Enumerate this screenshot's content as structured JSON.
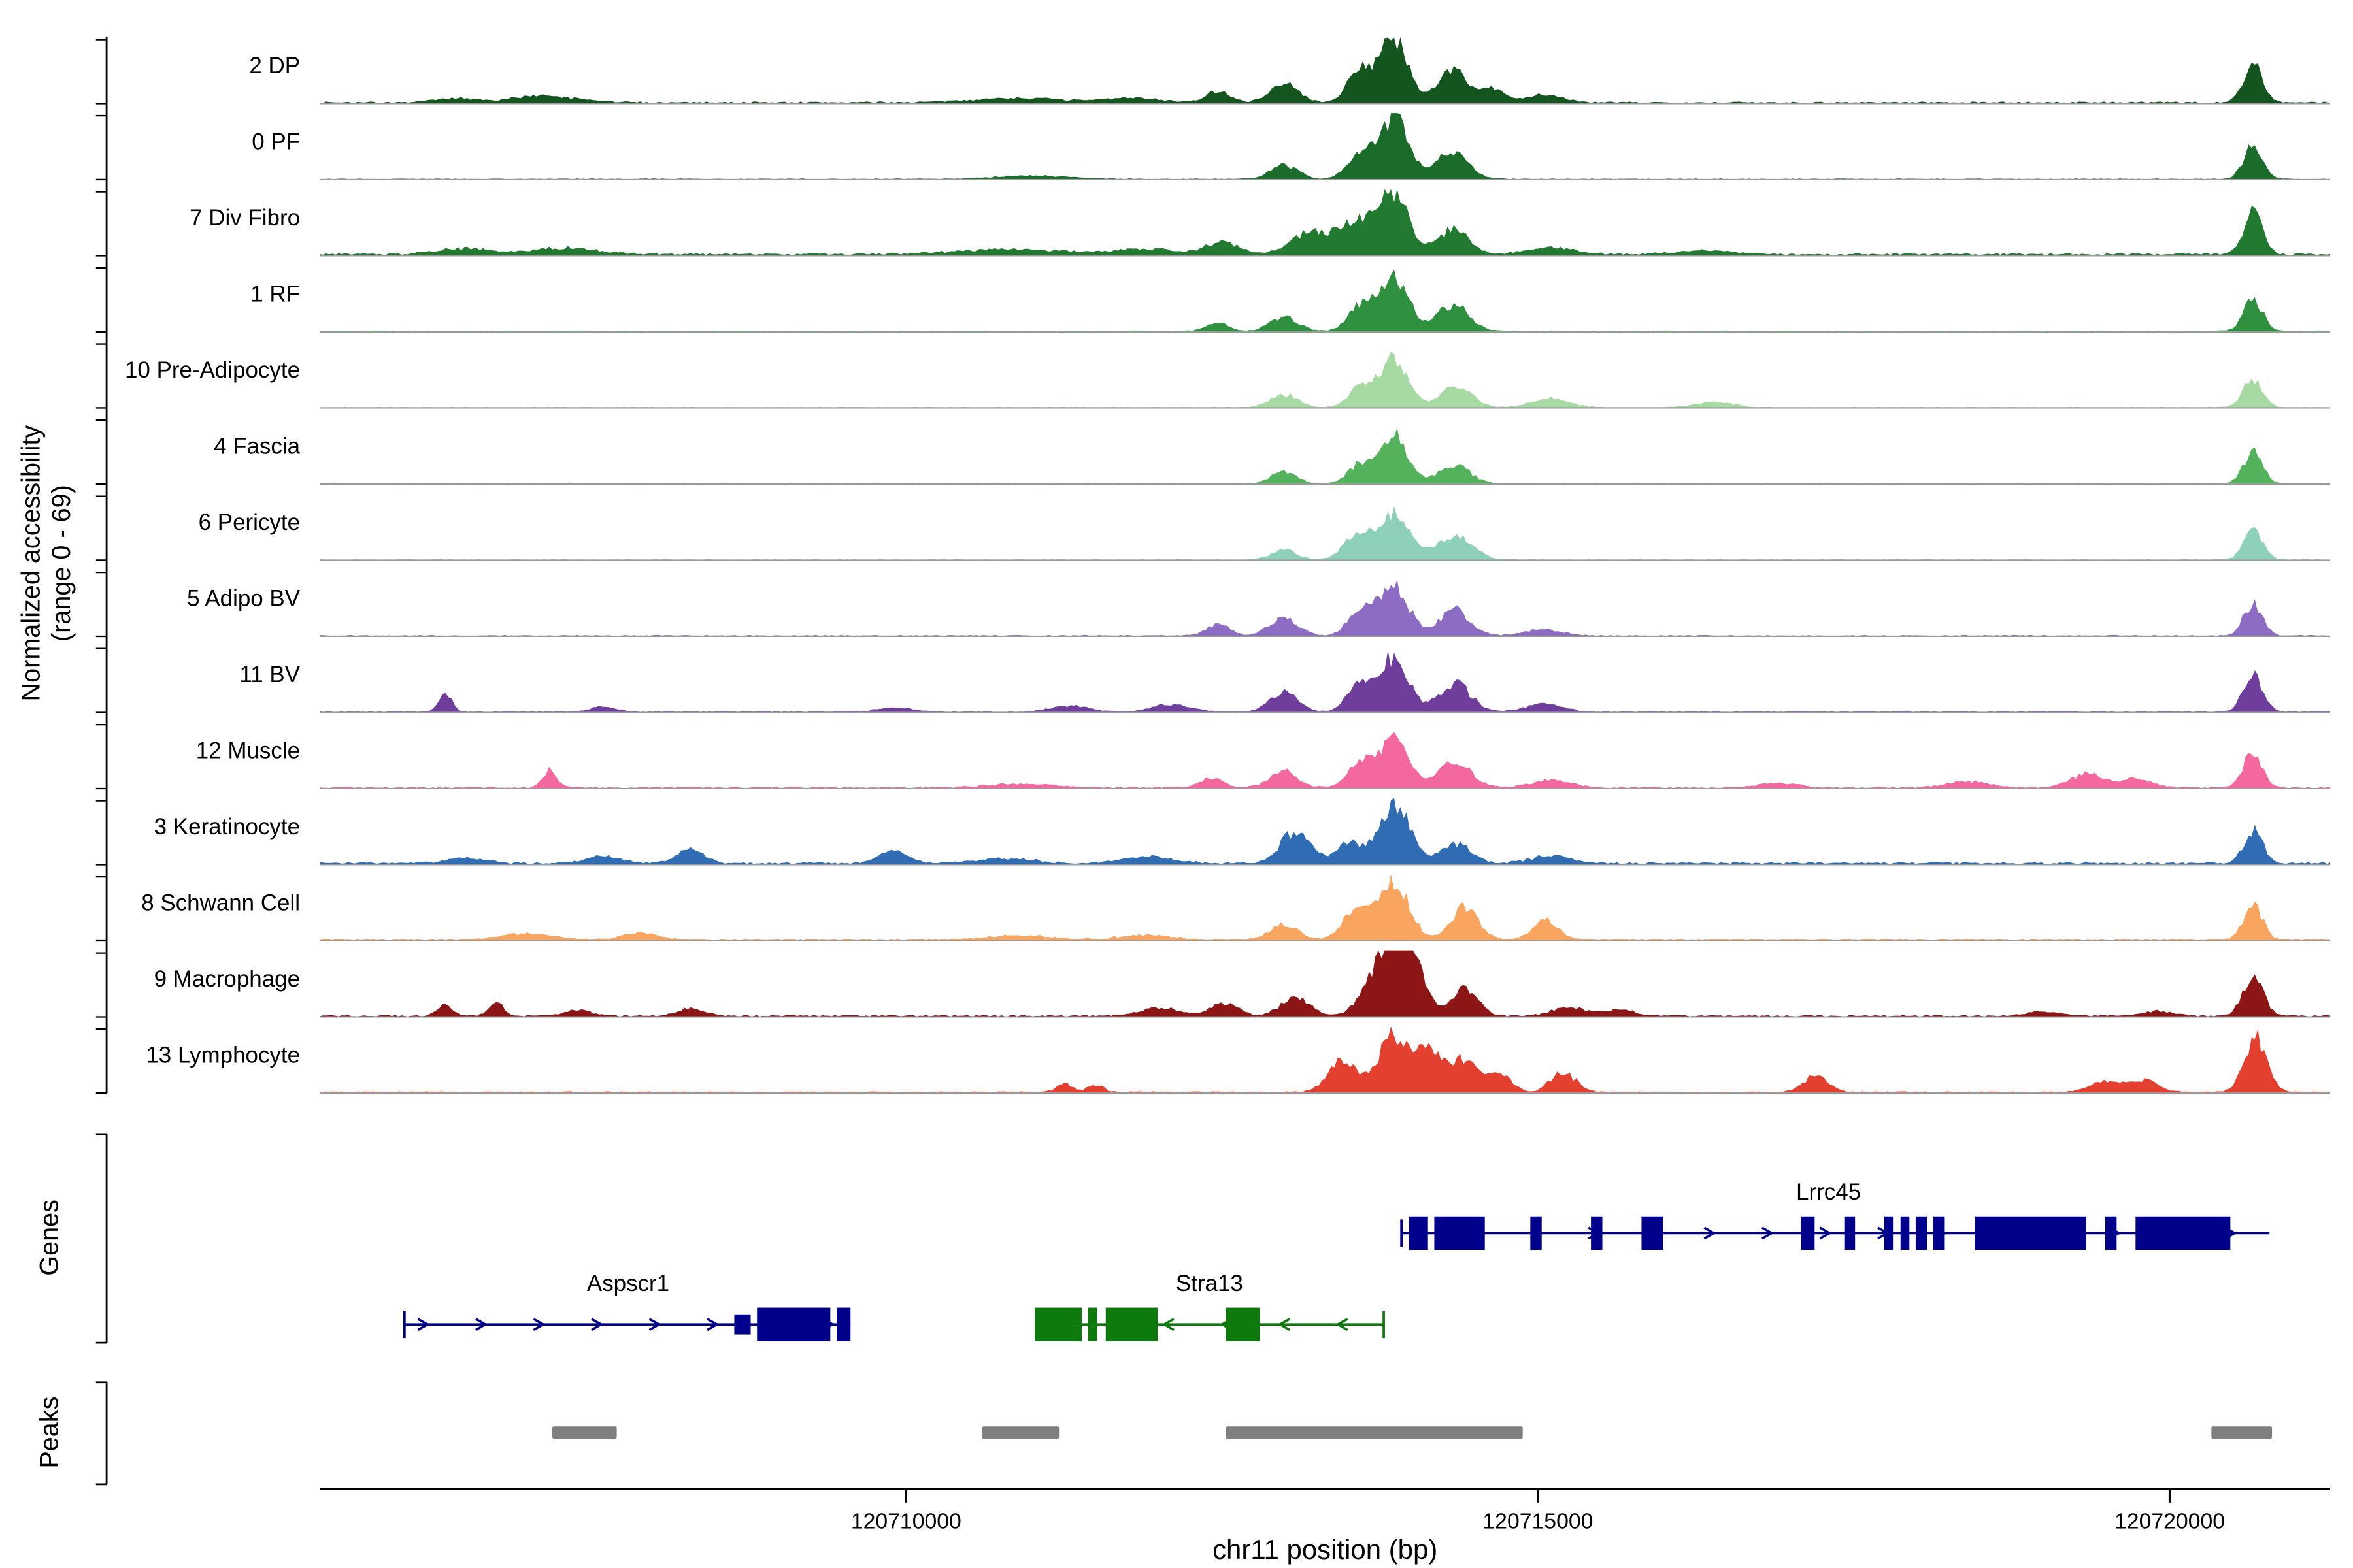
{
  "figure": {
    "y_axis_label_line1": "Normalized accessibility",
    "y_axis_label_line2": "(range 0 - 69)",
    "genes_section_label": "Genes",
    "peaks_section_label": "Peaks",
    "x_axis_label": "chr11 position (bp)"
  },
  "chart_data": {
    "type": "area",
    "title": "",
    "x_range_bp": [
      120705360,
      120721270
    ],
    "x_ticks": [
      120710000,
      120715000,
      120720000
    ],
    "grid": false,
    "tracks": [
      {
        "label": "2 DP",
        "color": "#14551f",
        "noise": 0.022,
        "peaks": [
          [
            120713860,
            110,
            1.0
          ],
          [
            120713590,
            95,
            0.5
          ],
          [
            120714330,
            120,
            0.5
          ],
          [
            120714650,
            90,
            0.2
          ],
          [
            120712990,
            110,
            0.3
          ],
          [
            120712470,
            90,
            0.18
          ],
          [
            120707120,
            260,
            0.1
          ],
          [
            120706420,
            150,
            0.06
          ],
          [
            120710900,
            350,
            0.07
          ],
          [
            120711800,
            200,
            0.07
          ],
          [
            120715050,
            140,
            0.12
          ],
          [
            120720660,
            75,
            0.6
          ]
        ]
      },
      {
        "label": "0 PF",
        "color": "#1b6b2a",
        "noise": 0.013,
        "peaks": [
          [
            120713860,
            115,
            0.95
          ],
          [
            120713590,
            95,
            0.4
          ],
          [
            120714330,
            120,
            0.45
          ],
          [
            120712990,
            110,
            0.22
          ],
          [
            120711000,
            300,
            0.05
          ],
          [
            120720660,
            75,
            0.5
          ]
        ]
      },
      {
        "label": "7 Div Fibro",
        "color": "#227a31",
        "noise": 0.03,
        "peaks": [
          [
            120713860,
            115,
            0.95
          ],
          [
            120713560,
            130,
            0.5
          ],
          [
            120713200,
            150,
            0.35
          ],
          [
            120714330,
            120,
            0.4
          ],
          [
            120712500,
            120,
            0.2
          ],
          [
            120706500,
            200,
            0.09
          ],
          [
            120707300,
            250,
            0.1
          ],
          [
            120710800,
            400,
            0.08
          ],
          [
            120711900,
            250,
            0.08
          ],
          [
            120715100,
            180,
            0.1
          ],
          [
            120716300,
            200,
            0.06
          ],
          [
            120720660,
            75,
            0.65
          ]
        ]
      },
      {
        "label": "1 RF",
        "color": "#2f9140",
        "noise": 0.015,
        "peaks": [
          [
            120713860,
            115,
            0.85
          ],
          [
            120713590,
            95,
            0.38
          ],
          [
            120714330,
            120,
            0.42
          ],
          [
            120712990,
            110,
            0.22
          ],
          [
            120712470,
            90,
            0.12
          ],
          [
            120720660,
            75,
            0.5
          ]
        ]
      },
      {
        "label": "10 Pre-Adipocyte",
        "color": "#a7d9a2",
        "noise": 0.012,
        "peaks": [
          [
            120713860,
            110,
            0.8
          ],
          [
            120713590,
            90,
            0.3
          ],
          [
            120714350,
            120,
            0.35
          ],
          [
            120712990,
            110,
            0.2
          ],
          [
            120715100,
            140,
            0.15
          ],
          [
            120716400,
            150,
            0.08
          ],
          [
            120720660,
            75,
            0.45
          ]
        ]
      },
      {
        "label": "4 Fascia",
        "color": "#55b25c",
        "noise": 0.012,
        "peaks": [
          [
            120713860,
            110,
            0.75
          ],
          [
            120713590,
            90,
            0.3
          ],
          [
            120714340,
            120,
            0.3
          ],
          [
            120712990,
            100,
            0.18
          ],
          [
            120720660,
            75,
            0.5
          ]
        ]
      },
      {
        "label": "6 Pericyte",
        "color": "#8ed0ba",
        "noise": 0.012,
        "peaks": [
          [
            120713860,
            130,
            0.75
          ],
          [
            120713560,
            100,
            0.35
          ],
          [
            120714350,
            130,
            0.38
          ],
          [
            120712990,
            100,
            0.15
          ],
          [
            120720660,
            75,
            0.45
          ]
        ]
      },
      {
        "label": "5 Adipo BV",
        "color": "#8d6dc3",
        "noise": 0.015,
        "peaks": [
          [
            120713860,
            115,
            0.8
          ],
          [
            120713590,
            95,
            0.4
          ],
          [
            120714340,
            120,
            0.4
          ],
          [
            120712990,
            110,
            0.28
          ],
          [
            120712470,
            90,
            0.18
          ],
          [
            120715050,
            140,
            0.1
          ],
          [
            120720660,
            75,
            0.5
          ]
        ]
      },
      {
        "label": "11 BV",
        "color": "#6f3e9d",
        "noise": 0.018,
        "peaks": [
          [
            120713860,
            115,
            0.85
          ],
          [
            120713590,
            95,
            0.45
          ],
          [
            120714340,
            120,
            0.45
          ],
          [
            120712990,
            110,
            0.3
          ],
          [
            120706350,
            50,
            0.3
          ],
          [
            120707600,
            90,
            0.08
          ],
          [
            120709900,
            120,
            0.07
          ],
          [
            120711300,
            140,
            0.09
          ],
          [
            120712100,
            140,
            0.12
          ],
          [
            120715050,
            140,
            0.12
          ],
          [
            120720660,
            75,
            0.55
          ]
        ]
      },
      {
        "label": "12 Muscle",
        "color": "#f468a0",
        "noise": 0.02,
        "peaks": [
          [
            120713860,
            115,
            0.75
          ],
          [
            120713590,
            95,
            0.4
          ],
          [
            120714340,
            130,
            0.4
          ],
          [
            120712990,
            110,
            0.25
          ],
          [
            120712420,
            90,
            0.15
          ],
          [
            120707180,
            55,
            0.28
          ],
          [
            120710900,
            250,
            0.06
          ],
          [
            120715100,
            150,
            0.12
          ],
          [
            120716900,
            150,
            0.07
          ],
          [
            120718400,
            160,
            0.1
          ],
          [
            120719350,
            130,
            0.22
          ],
          [
            120719750,
            120,
            0.14
          ],
          [
            120720660,
            75,
            0.55
          ]
        ]
      },
      {
        "label": "3 Keratinocyte",
        "color": "#2f6cb3",
        "noise": 0.03,
        "peaks": [
          [
            120713860,
            120,
            0.95
          ],
          [
            120713080,
            120,
            0.5
          ],
          [
            120713500,
            100,
            0.3
          ],
          [
            120714350,
            120,
            0.3
          ],
          [
            120708300,
            100,
            0.22
          ],
          [
            120709900,
            110,
            0.2
          ],
          [
            120707600,
            120,
            0.12
          ],
          [
            120706500,
            150,
            0.08
          ],
          [
            120710800,
            200,
            0.08
          ],
          [
            120711900,
            200,
            0.1
          ],
          [
            120715100,
            150,
            0.12
          ],
          [
            120720660,
            75,
            0.5
          ]
        ]
      },
      {
        "label": "8 Schwann Cell",
        "color": "#f9a45f",
        "noise": 0.02,
        "peaks": [
          [
            120713860,
            120,
            0.9
          ],
          [
            120713560,
            110,
            0.45
          ],
          [
            120714420,
            110,
            0.5
          ],
          [
            120715060,
            100,
            0.32
          ],
          [
            120712990,
            110,
            0.25
          ],
          [
            120707000,
            200,
            0.1
          ],
          [
            120707900,
            150,
            0.1
          ],
          [
            120710900,
            250,
            0.07
          ],
          [
            120711900,
            200,
            0.08
          ],
          [
            120720660,
            75,
            0.55
          ]
        ]
      },
      {
        "label": "9 Macrophage",
        "color": "#8c1515",
        "noise": 0.022,
        "peaks": [
          [
            120713790,
            140,
            0.88
          ],
          [
            120713980,
            120,
            0.8
          ],
          [
            120714430,
            100,
            0.42
          ],
          [
            120713080,
            110,
            0.3
          ],
          [
            120712520,
            100,
            0.2
          ],
          [
            120706350,
            60,
            0.18
          ],
          [
            120706760,
            60,
            0.2
          ],
          [
            120707400,
            100,
            0.1
          ],
          [
            120708300,
            100,
            0.12
          ],
          [
            120712000,
            160,
            0.12
          ],
          [
            120715250,
            130,
            0.14
          ],
          [
            120715650,
            110,
            0.1
          ],
          [
            120719000,
            150,
            0.06
          ],
          [
            120719900,
            120,
            0.07
          ],
          [
            120720660,
            80,
            0.6
          ]
        ]
      },
      {
        "label": "13 Lymphocyte",
        "color": "#e4402f",
        "noise": 0.018,
        "peaks": [
          [
            120711250,
            60,
            0.14
          ],
          [
            120711500,
            60,
            0.12
          ],
          [
            120713450,
            110,
            0.5
          ],
          [
            120713860,
            120,
            0.9
          ],
          [
            120714150,
            100,
            0.65
          ],
          [
            120714420,
            100,
            0.5
          ],
          [
            120714700,
            90,
            0.3
          ],
          [
            120715200,
            100,
            0.3
          ],
          [
            120717200,
            100,
            0.25
          ],
          [
            120719500,
            120,
            0.18
          ],
          [
            120719800,
            110,
            0.18
          ],
          [
            120720680,
            90,
            0.85
          ]
        ]
      }
    ],
    "genes": [
      {
        "name": "Aspscr1",
        "color": "#00008b",
        "strand": "+",
        "row": 1,
        "start_bp": 120706030,
        "end_bp": 120709560,
        "label_bp": 120707800,
        "exons": [
          [
            120708640,
            120708770,
            0.6
          ],
          [
            120708820,
            120709400,
            1
          ],
          [
            120709450,
            120709560,
            1
          ]
        ]
      },
      {
        "name": "Stra13",
        "color": "#0e7a0e",
        "strand": "-",
        "row": 1,
        "start_bp": 120711020,
        "end_bp": 120713780,
        "label_bp": 120712400,
        "exons": [
          [
            120711020,
            120711390,
            1
          ],
          [
            120711440,
            120711510,
            1
          ],
          [
            120711580,
            120711990,
            1
          ],
          [
            120712530,
            120712800,
            1
          ]
        ]
      },
      {
        "name": "Lrrc45",
        "color": "#00008b",
        "strand": "+",
        "row": 0,
        "start_bp": 120713920,
        "end_bp": 120720790,
        "label_bp": 120717300,
        "exons": [
          [
            120713980,
            120714130,
            1
          ],
          [
            120714180,
            120714580,
            1
          ],
          [
            120714940,
            120715030,
            1
          ],
          [
            120715420,
            120715510,
            1
          ],
          [
            120715820,
            120715990,
            1
          ],
          [
            120717080,
            120717190,
            1
          ],
          [
            120717430,
            120717510,
            1
          ],
          [
            120717740,
            120717810,
            1
          ],
          [
            120717870,
            120717940,
            1
          ],
          [
            120717990,
            120718080,
            1
          ],
          [
            120718130,
            120718220,
            1
          ],
          [
            120718460,
            120719340,
            1
          ],
          [
            120719490,
            120719580,
            1
          ],
          [
            120719730,
            120720480,
            1
          ]
        ]
      }
    ],
    "peak_regions": [
      [
        120707200,
        120707710
      ],
      [
        120710600,
        120711210
      ],
      [
        120712530,
        120714880
      ],
      [
        120720330,
        120720810
      ]
    ],
    "peak_color": "#7f7f7f",
    "baseline_color": "#9a9a9a"
  }
}
